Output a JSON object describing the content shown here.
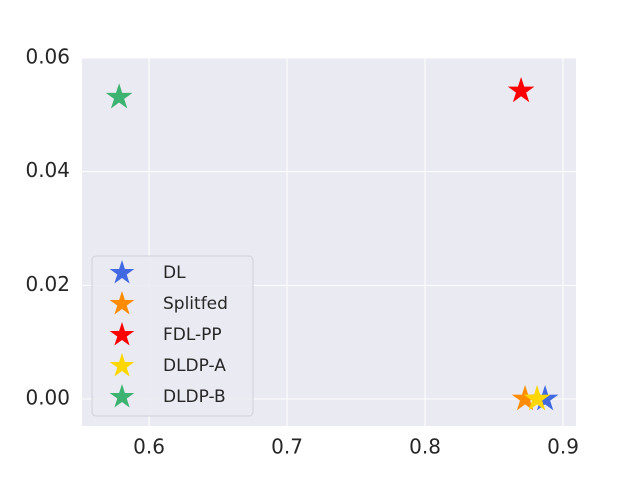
{
  "chart_data": {
    "type": "scatter",
    "series": [
      {
        "name": "DL",
        "color": "#4169e1",
        "x": [
          0.887
        ],
        "values": [
          0
        ]
      },
      {
        "name": "Splitfed",
        "color": "#ff8c00",
        "x": [
          0.8725
        ],
        "values": [
          0
        ]
      },
      {
        "name": "FDL-PP",
        "color": "#ff0000",
        "x": [
          0.8696
        ],
        "values": [
          0.0542
        ]
      },
      {
        "name": "DLDP-A",
        "color": "#ffd700",
        "x": [
          0.8812
        ],
        "values": [
          0
        ]
      },
      {
        "name": "DLDP-B",
        "color": "#3cb371",
        "x": [
          0.5783
        ],
        "values": [
          0.0531
        ]
      }
    ],
    "xlim": [
      0.5514,
      0.9094
    ],
    "ylim": [
      -0.00475,
      0.06
    ],
    "xticks": [
      0.6,
      0.7,
      0.8,
      0.9
    ],
    "yticks": [
      {
        "value": 0,
        "label": "0.00"
      },
      0.02,
      0.04,
      0.06
    ],
    "grid": true,
    "legend": "lower left"
  }
}
